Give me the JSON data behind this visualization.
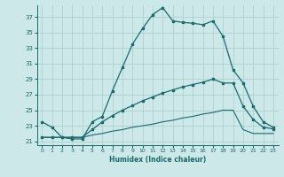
{
  "xlabel": "Humidex (Indice chaleur)",
  "bg_color": "#cce8e8",
  "grid_color": "#aacccc",
  "line_color": "#1a6b6b",
  "xlim": [
    -0.5,
    23.5
  ],
  "ylim": [
    20.5,
    38.5
  ],
  "xticks": [
    0,
    1,
    2,
    3,
    4,
    5,
    6,
    7,
    8,
    9,
    10,
    11,
    12,
    13,
    14,
    15,
    16,
    17,
    18,
    19,
    20,
    21,
    22,
    23
  ],
  "yticks": [
    21,
    23,
    25,
    27,
    29,
    31,
    33,
    35,
    37
  ],
  "line1_x": [
    0,
    1,
    2,
    3,
    4,
    5,
    6,
    7,
    8,
    9,
    10,
    11,
    12,
    13,
    14,
    15,
    16,
    17,
    18,
    19,
    20,
    21,
    22,
    23
  ],
  "line1_y": [
    23.5,
    22.8,
    21.5,
    21.3,
    21.3,
    23.5,
    24.2,
    27.5,
    30.5,
    33.5,
    35.5,
    37.3,
    38.2,
    36.5,
    36.3,
    36.2,
    36.0,
    36.5,
    34.5,
    30.2,
    28.5,
    25.5,
    23.5,
    22.8
  ],
  "line2_x": [
    0,
    1,
    2,
    3,
    4,
    5,
    6,
    7,
    8,
    9,
    10,
    11,
    12,
    13,
    14,
    15,
    16,
    17,
    18,
    19,
    20,
    21,
    22,
    23
  ],
  "line2_y": [
    21.5,
    21.5,
    21.5,
    21.5,
    21.5,
    22.5,
    23.5,
    24.3,
    25.0,
    25.6,
    26.2,
    26.7,
    27.2,
    27.6,
    28.0,
    28.3,
    28.6,
    29.0,
    28.5,
    28.5,
    25.5,
    23.8,
    22.8,
    22.6
  ],
  "line3_x": [
    0,
    1,
    2,
    3,
    4,
    5,
    6,
    7,
    8,
    9,
    10,
    11,
    12,
    13,
    14,
    15,
    16,
    17,
    18,
    19,
    20,
    21,
    22,
    23
  ],
  "line3_y": [
    21.5,
    21.5,
    21.5,
    21.5,
    21.5,
    21.8,
    22.0,
    22.3,
    22.5,
    22.8,
    23.0,
    23.2,
    23.5,
    23.7,
    24.0,
    24.2,
    24.5,
    24.7,
    25.0,
    25.0,
    22.5,
    22.0,
    22.0,
    22.0
  ]
}
